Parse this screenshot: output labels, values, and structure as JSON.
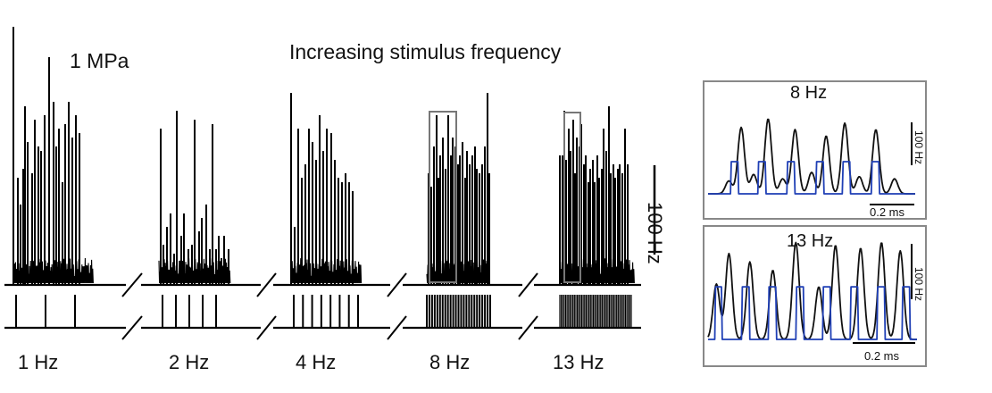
{
  "chart_data": [
    {
      "type": "line",
      "title": "Increasing stimulus frequency",
      "condition": "1 MPa",
      "ylabel": "Hz",
      "scale_bar": {
        "value": 100,
        "unit": "Hz",
        "label": "100 Hz"
      },
      "panels": [
        {
          "label": "1 Hz",
          "stim_hz": 1,
          "pulses": 3,
          "spikes": [
            [
              0,
              289
            ],
            [
              5,
              120
            ],
            [
              8,
              90
            ],
            [
              11,
              130
            ],
            [
              13,
              200
            ],
            [
              16,
              160
            ],
            [
              21,
              125
            ],
            [
              24,
              185
            ],
            [
              28,
              155
            ],
            [
              31,
              150
            ],
            [
              35,
              190
            ],
            [
              40,
              255
            ],
            [
              45,
              205
            ],
            [
              48,
              155
            ],
            [
              51,
              175
            ],
            [
              55,
              115
            ],
            [
              58,
              180
            ],
            [
              62,
              205
            ],
            [
              66,
              165
            ],
            [
              70,
              190
            ],
            [
              74,
              170
            ]
          ]
        },
        {
          "label": "2 Hz",
          "stim_hz": 2,
          "pulses": 5,
          "spikes": [
            [
              2,
              175
            ],
            [
              5,
              45
            ],
            [
              9,
              65
            ],
            [
              13,
              80
            ],
            [
              17,
              35
            ],
            [
              20,
              195
            ],
            [
              25,
              55
            ],
            [
              28,
              80
            ],
            [
              33,
              40
            ],
            [
              37,
              45
            ],
            [
              40,
              185
            ],
            [
              45,
              60
            ],
            [
              48,
              75
            ],
            [
              53,
              90
            ],
            [
              57,
              40
            ],
            [
              60,
              180
            ],
            [
              64,
              40
            ],
            [
              67,
              55
            ],
            [
              70,
              30
            ],
            [
              73,
              55
            ],
            [
              78,
              40
            ]
          ]
        },
        {
          "label": "4 Hz",
          "stim_hz": 4,
          "pulses": 8,
          "spikes": [
            [
              0,
              215
            ],
            [
              4,
              65
            ],
            [
              8,
              175
            ],
            [
              12,
              120
            ],
            [
              16,
              135
            ],
            [
              20,
              175
            ],
            [
              24,
              160
            ],
            [
              28,
              140
            ],
            [
              32,
              190
            ],
            [
              36,
              150
            ],
            [
              40,
              175
            ],
            [
              45,
              170
            ],
            [
              49,
              140
            ],
            [
              53,
              120
            ],
            [
              57,
              115
            ],
            [
              61,
              125
            ],
            [
              65,
              115
            ],
            [
              69,
              105
            ]
          ]
        },
        {
          "label": "8 Hz",
          "stim_hz": 8,
          "pulses": 25,
          "spikes": [
            [
              2,
              125
            ],
            [
              5,
              110
            ],
            [
              8,
              155
            ],
            [
              11,
              190
            ],
            [
              13,
              120
            ],
            [
              15,
              145
            ],
            [
              18,
              165
            ],
            [
              21,
              130
            ],
            [
              24,
              190
            ],
            [
              27,
              145
            ],
            [
              29,
              165
            ],
            [
              32,
              155
            ],
            [
              35,
              135
            ],
            [
              37,
              145
            ],
            [
              40,
              160
            ],
            [
              43,
              120
            ],
            [
              45,
              150
            ],
            [
              48,
              135
            ],
            [
              51,
              145
            ],
            [
              54,
              155
            ],
            [
              56,
              130
            ],
            [
              59,
              125
            ],
            [
              62,
              135
            ],
            [
              65,
              155
            ],
            [
              68,
              215
            ],
            [
              70,
              125
            ]
          ]
        },
        {
          "label": "13 Hz",
          "stim_hz": 13,
          "pulses": 50,
          "spikes": [
            [
              0,
              145
            ],
            [
              3,
              145
            ],
            [
              5,
              195
            ],
            [
              7,
              140
            ],
            [
              10,
              175
            ],
            [
              12,
              150
            ],
            [
              15,
              185
            ],
            [
              17,
              125
            ],
            [
              19,
              165
            ],
            [
              22,
              155
            ],
            [
              24,
              180
            ],
            [
              27,
              135
            ],
            [
              29,
              145
            ],
            [
              32,
              115
            ],
            [
              34,
              130
            ],
            [
              37,
              140
            ],
            [
              39,
              115
            ],
            [
              42,
              145
            ],
            [
              44,
              120
            ],
            [
              47,
              130
            ],
            [
              49,
              175
            ],
            [
              52,
              150
            ],
            [
              55,
              200
            ],
            [
              57,
              125
            ],
            [
              60,
              135
            ],
            [
              62,
              120
            ],
            [
              65,
              130
            ],
            [
              67,
              135
            ],
            [
              70,
              125
            ],
            [
              73,
              175
            ],
            [
              76,
              135
            ]
          ]
        }
      ]
    },
    {
      "type": "line",
      "title": "8 Hz",
      "x_scale_bar": {
        "value": 0.2,
        "unit": "ms",
        "label": "0.2 ms"
      },
      "y_scale_bar": {
        "value": 100,
        "unit": "Hz",
        "label": "100 Hz"
      },
      "series": [
        {
          "name": "response",
          "color": "#111111",
          "peaks": [
            [
              0.1,
              30
            ],
            [
              0.16,
              155
            ],
            [
              0.22,
              45
            ],
            [
              0.29,
              175
            ],
            [
              0.36,
              35
            ],
            [
              0.42,
              150
            ],
            [
              0.5,
              50
            ],
            [
              0.57,
              135
            ],
            [
              0.66,
              165
            ],
            [
              0.73,
              40
            ],
            [
              0.81,
              150
            ],
            [
              0.9,
              35
            ]
          ]
        },
        {
          "name": "stimulus",
          "color": "#1f3fb5",
          "peaks": [
            [
              0.13,
              75
            ],
            [
              0.26,
              75
            ],
            [
              0.4,
              75
            ],
            [
              0.54,
              75
            ],
            [
              0.67,
              75
            ],
            [
              0.81,
              75
            ]
          ]
        }
      ]
    },
    {
      "type": "line",
      "title": "13 Hz",
      "x_scale_bar": {
        "value": 0.2,
        "unit": "ms",
        "label": "0.2 ms"
      },
      "y_scale_bar": {
        "value": 100,
        "unit": "Hz",
        "label": "100 Hz"
      },
      "series": [
        {
          "name": "response",
          "color": "#111111",
          "peaks": [
            [
              0.04,
              100
            ],
            [
              0.1,
              155
            ],
            [
              0.2,
              140
            ],
            [
              0.31,
              125
            ],
            [
              0.42,
              175
            ],
            [
              0.53,
              95
            ],
            [
              0.61,
              170
            ],
            [
              0.73,
              165
            ],
            [
              0.83,
              175
            ],
            [
              0.92,
              160
            ]
          ]
        },
        {
          "name": "stimulus",
          "color": "#1f3fb5",
          "peaks": [
            [
              0.05,
              95
            ],
            [
              0.18,
              95
            ],
            [
              0.31,
              95
            ],
            [
              0.44,
              95
            ],
            [
              0.57,
              95
            ],
            [
              0.7,
              95
            ],
            [
              0.83,
              95
            ],
            [
              0.95,
              95
            ]
          ]
        }
      ]
    }
  ]
}
